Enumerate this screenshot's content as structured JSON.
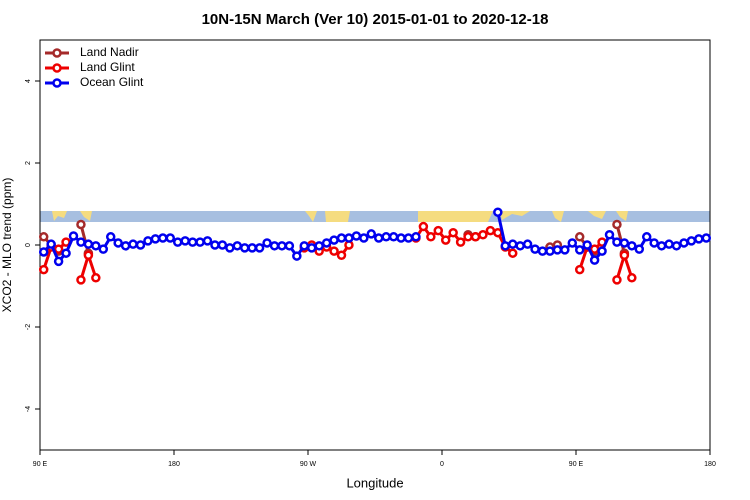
{
  "chart_data": {
    "type": "line",
    "title": "10N-15N March (Ver 10)   2015-01-01 to 2020-12-18",
    "x_label": "Longitude",
    "y_label": "XCO2 - MLO trend (ppm)",
    "xlim": [
      90,
      540
    ],
    "ylim": [
      -5,
      5
    ],
    "xticks": [
      {
        "value": 90,
        "label": "90 E"
      },
      180,
      {
        "value": 270,
        "label": "90 W"
      },
      {
        "value": 360,
        "label": "0"
      },
      {
        "value": 450,
        "label": "90 E"
      },
      {
        "value": 540,
        "label": "180"
      }
    ],
    "yticks": [
      -4,
      -2,
      0,
      2,
      4
    ],
    "legend": "top-left",
    "x": [
      92.5,
      97.5,
      102.5,
      107.5,
      112.5,
      117.5,
      122.5,
      127.5,
      132.5,
      137.5,
      142.5,
      147.5,
      152.5,
      157.5,
      162.5,
      167.5,
      172.5,
      177.5,
      182.5,
      187.5,
      192.5,
      197.5,
      202.5,
      207.5,
      212.5,
      217.5,
      222.5,
      227.5,
      232.5,
      237.5,
      242.5,
      247.5,
      252.5,
      257.5,
      262.5,
      267.5,
      272.5,
      277.5,
      282.5,
      287.5,
      292.5,
      297.5,
      302.5,
      307.5,
      312.5,
      317.5,
      322.5,
      327.5,
      332.5,
      337.5,
      342.5,
      347.5,
      352.5,
      357.5,
      362.5,
      367.5,
      372.5,
      377.5,
      382.5,
      387.5,
      392.5,
      397.5,
      402.5,
      407.5,
      412.5,
      417.5,
      422.5,
      427.5,
      432.5,
      437.5,
      442.5,
      447.5,
      452.5,
      457.5,
      462.5,
      467.5,
      472.5,
      477.5,
      482.5,
      487.5,
      492.5,
      497.5,
      502.5,
      507.5,
      512.5,
      517.5,
      522.5,
      527.5,
      532.5,
      537.5
    ],
    "series": [
      {
        "name": "Land Nadir",
        "color": "#a52a2a",
        "values": [
          0.2,
          0.0,
          -0.15,
          null,
          null,
          0.5,
          -0.2,
          null,
          null,
          null,
          null,
          null,
          null,
          null,
          null,
          null,
          null,
          null,
          null,
          null,
          null,
          null,
          null,
          null,
          null,
          null,
          null,
          null,
          null,
          null,
          null,
          null,
          null,
          null,
          null,
          null,
          null,
          null,
          null,
          null,
          null,
          null,
          null,
          null,
          null,
          null,
          null,
          null,
          null,
          null,
          null,
          null,
          null,
          null,
          null,
          null,
          null,
          0.25,
          0.2,
          null,
          null,
          null,
          null,
          null,
          null,
          null,
          null,
          null,
          -0.05,
          0.0,
          null,
          null,
          0.2,
          -0.05,
          -0.15,
          null,
          null,
          0.5,
          -0.2,
          null,
          null,
          null,
          null,
          null,
          null,
          null,
          null,
          null,
          null,
          null
        ]
      },
      {
        "name": "Land Glint",
        "color": "#ee0000",
        "values": [
          -0.6,
          -0.05,
          -0.1,
          0.07,
          null,
          -0.85,
          -0.25,
          -0.8,
          null,
          null,
          null,
          null,
          null,
          null,
          null,
          null,
          null,
          null,
          null,
          null,
          null,
          null,
          null,
          null,
          null,
          null,
          null,
          null,
          null,
          null,
          null,
          null,
          null,
          null,
          null,
          -0.07,
          0.0,
          -0.15,
          -0.05,
          -0.15,
          -0.25,
          0.0,
          null,
          null,
          null,
          null,
          null,
          null,
          null,
          null,
          0.17,
          0.45,
          0.2,
          0.35,
          0.12,
          0.3,
          0.07,
          0.2,
          0.2,
          0.25,
          0.35,
          0.3,
          -0.05,
          -0.2,
          null,
          null,
          null,
          null,
          null,
          null,
          null,
          null,
          -0.6,
          -0.05,
          -0.1,
          0.07,
          null,
          -0.85,
          -0.25,
          -0.8,
          null,
          null,
          null,
          null,
          null,
          null,
          null,
          null,
          null,
          null
        ]
      },
      {
        "name": "Ocean Glint",
        "color": "#0000ee",
        "values": [
          -0.17,
          0.02,
          -0.4,
          -0.2,
          0.22,
          0.07,
          0.02,
          -0.02,
          -0.1,
          0.2,
          0.05,
          -0.02,
          0.02,
          0,
          0.1,
          0.15,
          0.17,
          0.17,
          0.07,
          0.1,
          0.07,
          0.07,
          0.1,
          0,
          0,
          -0.07,
          -0.02,
          -0.07,
          -0.07,
          -0.07,
          0.05,
          -0.02,
          -0.02,
          -0.02,
          -0.27,
          -0.02,
          -0.07,
          -0.02,
          0.05,
          0.12,
          0.17,
          0.17,
          0.22,
          0.17,
          0.27,
          0.17,
          0.2,
          0.2,
          0.17,
          0.17,
          0.2,
          null,
          null,
          null,
          null,
          null,
          null,
          null,
          null,
          null,
          null,
          0.8,
          -0.02,
          0.02,
          -0.02,
          0.02,
          -0.1,
          -0.15,
          -0.15,
          -0.12,
          -0.12,
          0.05,
          -0.12,
          0,
          -0.37,
          -0.15,
          0.25,
          0.07,
          0.05,
          -0.02,
          -0.1,
          0.2,
          0.05,
          -0.02,
          0.02,
          -0.02,
          0.05,
          0.1,
          0.15,
          0.17
        ]
      }
    ]
  }
}
